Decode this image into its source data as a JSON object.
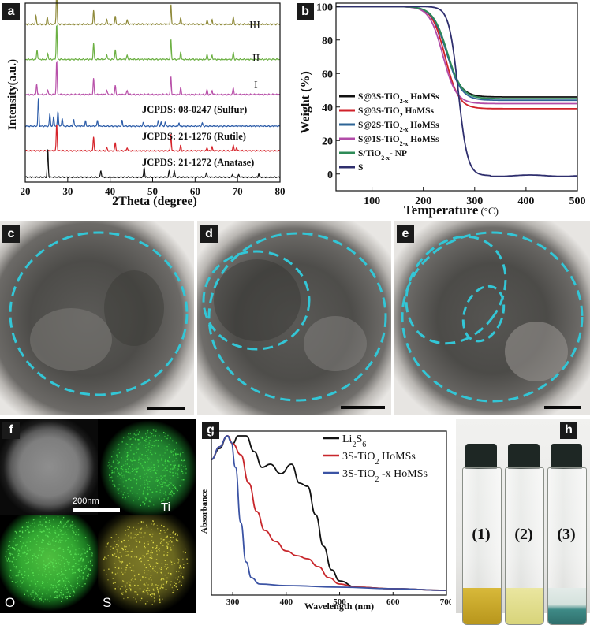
{
  "panels": {
    "a": "a",
    "b": "b",
    "c": "c",
    "d": "d",
    "e": "e",
    "f": "f",
    "g": "g",
    "h": "h"
  },
  "chart_data": [
    {
      "id": "xrd",
      "type": "line",
      "xlabel": "2Theta (degree)",
      "ylabel": "Intensity(a.u.)",
      "xlim": [
        20,
        80
      ],
      "xticks": [
        20,
        30,
        40,
        50,
        60,
        70,
        80
      ],
      "series": [
        {
          "name": "III",
          "color": "#8f8a3a",
          "offset": 0.88,
          "peaks": [
            [
              22.5,
              0.25
            ],
            [
              25.2,
              0.2
            ],
            [
              27.4,
              1.0
            ],
            [
              36.1,
              0.4
            ],
            [
              39.2,
              0.15
            ],
            [
              41.2,
              0.25
            ],
            [
              44.0,
              0.12
            ],
            [
              54.3,
              0.55
            ],
            [
              56.6,
              0.2
            ],
            [
              62.8,
              0.12
            ],
            [
              64.0,
              0.12
            ],
            [
              69.0,
              0.2
            ]
          ]
        },
        {
          "name": "II",
          "color": "#6cb043",
          "offset": 0.68,
          "peaks": [
            [
              22.8,
              0.28
            ],
            [
              25.3,
              0.18
            ],
            [
              27.4,
              1.0
            ],
            [
              36.1,
              0.45
            ],
            [
              39.2,
              0.15
            ],
            [
              41.2,
              0.28
            ],
            [
              44.0,
              0.12
            ],
            [
              54.3,
              0.55
            ],
            [
              56.6,
              0.22
            ],
            [
              62.8,
              0.14
            ],
            [
              64.0,
              0.12
            ],
            [
              69.0,
              0.2
            ]
          ]
        },
        {
          "name": "I",
          "color": "#b850a9",
          "offset": 0.48,
          "peaks": [
            [
              22.7,
              0.3
            ],
            [
              25.3,
              0.15
            ],
            [
              27.4,
              0.95
            ],
            [
              36.1,
              0.45
            ],
            [
              39.2,
              0.14
            ],
            [
              41.2,
              0.26
            ],
            [
              44.0,
              0.12
            ],
            [
              54.3,
              0.5
            ],
            [
              56.6,
              0.2
            ],
            [
              62.8,
              0.14
            ],
            [
              64.0,
              0.12
            ],
            [
              69.0,
              0.2
            ]
          ]
        },
        {
          "name": "JCPDS: 08-0247 (Sulfur)",
          "color": "#2c5ca8",
          "offset": 0.3,
          "peaks": [
            [
              23.1,
              1.0
            ],
            [
              25.8,
              0.45
            ],
            [
              26.7,
              0.35
            ],
            [
              27.7,
              0.55
            ],
            [
              28.7,
              0.3
            ],
            [
              31.4,
              0.25
            ],
            [
              34.2,
              0.18
            ],
            [
              37.0,
              0.2
            ],
            [
              42.8,
              0.2
            ],
            [
              47.8,
              0.15
            ],
            [
              51.3,
              0.2
            ],
            [
              52.0,
              0.15
            ],
            [
              53.0,
              0.15
            ],
            [
              56.2,
              0.12
            ],
            [
              61.7,
              0.12
            ]
          ]
        },
        {
          "name": "JCPDS: 21-1276 (Rutile)",
          "color": "#d6232a",
          "offset": 0.16,
          "peaks": [
            [
              27.4,
              0.95
            ],
            [
              36.1,
              0.5
            ],
            [
              39.2,
              0.12
            ],
            [
              41.2,
              0.3
            ],
            [
              44.0,
              0.12
            ],
            [
              54.3,
              0.6
            ],
            [
              56.6,
              0.2
            ],
            [
              62.8,
              0.12
            ],
            [
              64.0,
              0.14
            ],
            [
              69.0,
              0.22
            ],
            [
              69.8,
              0.12
            ]
          ]
        },
        {
          "name": "JCPDS: 21-1272 (Anatase)",
          "color": "#111111",
          "offset": 0.01,
          "peaks": [
            [
              25.3,
              1.0
            ],
            [
              37.8,
              0.25
            ],
            [
              48.0,
              0.35
            ],
            [
              53.9,
              0.22
            ],
            [
              55.1,
              0.22
            ],
            [
              62.7,
              0.18
            ],
            [
              68.8,
              0.1
            ],
            [
              70.3,
              0.1
            ],
            [
              75.0,
              0.12
            ]
          ]
        }
      ]
    },
    {
      "id": "tga",
      "type": "line",
      "xlabel": "Temperature",
      "xunit": "(°C)",
      "ylabel": "Weight (%)",
      "xlim": [
        30,
        500
      ],
      "ylim": [
        -10,
        102
      ],
      "xticks": [
        100,
        200,
        300,
        400,
        500
      ],
      "yticks": [
        0,
        20,
        40,
        60,
        80,
        100
      ],
      "series": [
        {
          "name": "S@3S-TiO2-x HoMSs",
          "sub": "",
          "color": "#111111",
          "t50": 245,
          "w": 14,
          "residual": 46
        },
        {
          "name": "S@3S-TiO2 HoMSs",
          "color": "#d0212a",
          "t50": 243,
          "w": 13,
          "residual": 39
        },
        {
          "name": "S@2S-TiO2-x HoMSs",
          "color": "#2e6496",
          "t50": 246,
          "w": 14,
          "residual": 44
        },
        {
          "name": "S@1S-TiO2-x HoMSs",
          "color": "#b24ca8",
          "t50": 238,
          "w": 13,
          "residual": 42
        },
        {
          "name": "S/TiO2-x- NP",
          "color": "#2e8b57",
          "t50": 247,
          "w": 14,
          "residual": 45
        },
        {
          "name": "S",
          "color": "#2f2f6e",
          "t50": 268,
          "w": 9,
          "residual": -1
        }
      ],
      "legend": [
        {
          "pre": "S@3S-TiO",
          "sub": "2-x",
          "post": " HoMSs"
        },
        {
          "pre": "S@3S-TiO",
          "sub": "2",
          "post": " HoMSs"
        },
        {
          "pre": "S@2S-TiO",
          "sub": "2-x",
          "post": " HoMSs"
        },
        {
          "pre": "S@1S-TiO",
          "sub": "2-x",
          "post": " HoMSs"
        },
        {
          "pre": "S/TiO",
          "sub": "2-x",
          "post": "- NP"
        },
        {
          "pre": "S",
          "sub": "",
          "post": ""
        }
      ]
    },
    {
      "id": "uvvis",
      "type": "line",
      "xlabel": "Wavelength (nm)",
      "ylabel": "Absorbance",
      "xlim": [
        260,
        700
      ],
      "xticks": [
        300,
        400,
        500,
        600,
        700
      ],
      "series": [
        {
          "name": "Li2S6",
          "color": "#111111",
          "points": [
            [
              260,
              0.85
            ],
            [
              275,
              0.92
            ],
            [
              290,
              1.0
            ],
            [
              300,
              0.95
            ],
            [
              310,
              1.0
            ],
            [
              325,
              1.0
            ],
            [
              340,
              0.9
            ],
            [
              355,
              0.8
            ],
            [
              370,
              0.82
            ],
            [
              390,
              0.76
            ],
            [
              410,
              0.82
            ],
            [
              425,
              0.7
            ],
            [
              440,
              0.68
            ],
            [
              455,
              0.5
            ],
            [
              470,
              0.3
            ],
            [
              485,
              0.15
            ],
            [
              500,
              0.08
            ],
            [
              530,
              0.04
            ],
            [
              600,
              0.03
            ],
            [
              700,
              0.02
            ]
          ]
        },
        {
          "name": "3S-TiO2 HoMSs",
          "color": "#c8262b",
          "points": [
            [
              260,
              0.85
            ],
            [
              275,
              0.93
            ],
            [
              290,
              1.0
            ],
            [
              300,
              0.95
            ],
            [
              315,
              0.88
            ],
            [
              330,
              0.7
            ],
            [
              345,
              0.52
            ],
            [
              360,
              0.4
            ],
            [
              380,
              0.33
            ],
            [
              400,
              0.27
            ],
            [
              420,
              0.24
            ],
            [
              440,
              0.22
            ],
            [
              460,
              0.17
            ],
            [
              480,
              0.1
            ],
            [
              500,
              0.06
            ],
            [
              530,
              0.04
            ],
            [
              600,
              0.03
            ],
            [
              700,
              0.02
            ]
          ]
        },
        {
          "name": "3S-TiO2 -x HoMSs",
          "color": "#3b53a4",
          "points": [
            [
              260,
              0.85
            ],
            [
              275,
              0.93
            ],
            [
              290,
              1.0
            ],
            [
              297,
              0.96
            ],
            [
              305,
              0.8
            ],
            [
              315,
              0.45
            ],
            [
              325,
              0.2
            ],
            [
              335,
              0.1
            ],
            [
              350,
              0.06
            ],
            [
              400,
              0.05
            ],
            [
              500,
              0.04
            ],
            [
              600,
              0.03
            ],
            [
              700,
              0.02
            ]
          ]
        }
      ],
      "legend": [
        {
          "pre": "Li",
          "sub": "2",
          "mid": "S",
          "sub2": "6",
          "post": ""
        },
        {
          "pre": "3S-TiO",
          "sub": "2",
          "mid": "  HoMSs",
          "sub2": "",
          "post": ""
        },
        {
          "pre": "3S-TiO",
          "sub": "2",
          "mid": " -x HoMSs",
          "sub2": "",
          "post": ""
        }
      ]
    }
  ],
  "xrd_labels": {
    "III": "III",
    "II": "II",
    "I": "I",
    "sulfur": "JCPDS: 08-0247 (Sulfur)",
    "rutile": "JCPDS: 21-1276 (Rutile)",
    "anatase": "JCPDS: 21-1272 (Anatase)"
  },
  "eds": {
    "scale": "200nm",
    "ti": "Ti",
    "o": "O",
    "s": "S"
  },
  "vials": [
    "(1)",
    "(2)",
    "(3)"
  ],
  "colors": {
    "dash": "#33c6d6",
    "green": "#35b53a",
    "yellow": "#c9c33a"
  }
}
